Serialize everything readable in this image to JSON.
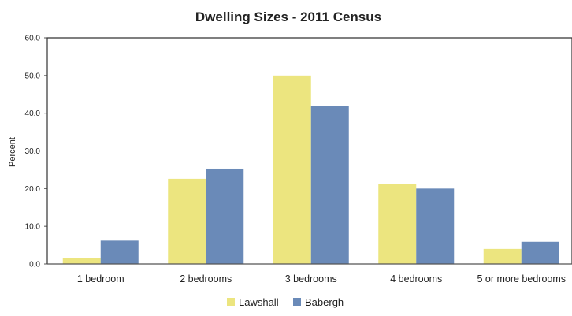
{
  "chart_data": {
    "type": "bar",
    "title": "Dwelling Sizes - 2011 Census",
    "xlabel": "",
    "ylabel": "Percent",
    "ylim": [
      0,
      60
    ],
    "yticks": [
      0,
      10,
      20,
      30,
      40,
      50,
      60
    ],
    "ytick_labels": [
      "0.0",
      "10.0",
      "20.0",
      "30.0",
      "40.0",
      "50.0",
      "60.0"
    ],
    "grid": false,
    "legend_position": "bottom",
    "categories": [
      "1 bedroom",
      "2 bedrooms",
      "3 bedrooms",
      "4 bedrooms",
      "5 or more bedrooms"
    ],
    "series": [
      {
        "name": "Lawshall",
        "color": "#ece57f",
        "values": [
          1.6,
          22.6,
          50.0,
          21.3,
          4.0
        ]
      },
      {
        "name": "Babergh",
        "color": "#6a8ab8",
        "values": [
          6.2,
          25.3,
          42.0,
          20.0,
          5.9
        ]
      }
    ]
  }
}
